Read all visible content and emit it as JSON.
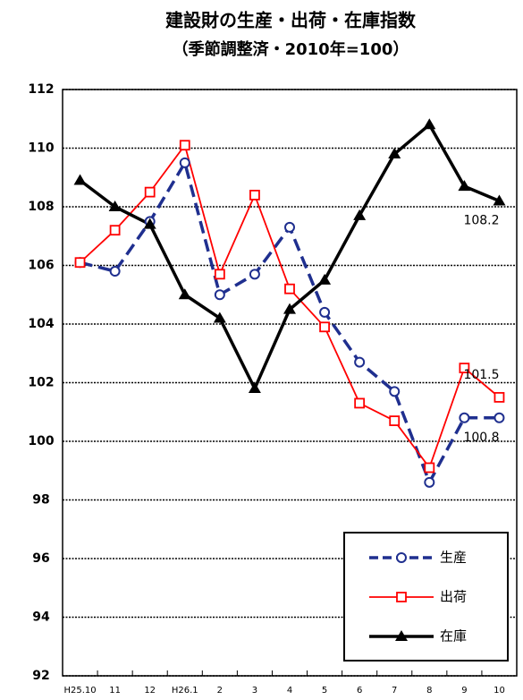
{
  "chart_data": {
    "type": "line",
    "title": "建設財の生産・出荷・在庫指数",
    "subtitle": "（季節調整済・2010年=100）",
    "categories": [
      "H25.10",
      "11",
      "12",
      "H26.1",
      "2",
      "3",
      "4",
      "5",
      "6",
      "7",
      "8",
      "9",
      "10"
    ],
    "series": [
      {
        "name": "生産",
        "color": "#1f2f8f",
        "values": [
          106.1,
          105.8,
          107.5,
          109.5,
          105.0,
          105.7,
          107.3,
          104.4,
          102.7,
          101.7,
          98.6,
          100.8,
          100.8
        ]
      },
      {
        "name": "出荷",
        "color": "#ff0000",
        "values": [
          106.1,
          107.2,
          108.5,
          110.1,
          105.7,
          108.4,
          105.2,
          103.9,
          101.3,
          100.7,
          99.1,
          102.5,
          101.5
        ]
      },
      {
        "name": "在庫",
        "color": "#000000",
        "values": [
          108.9,
          108.0,
          107.4,
          105.0,
          104.2,
          101.8,
          104.5,
          105.5,
          107.7,
          109.8,
          110.8,
          108.7,
          108.2
        ]
      }
    ],
    "ylim": [
      92,
      112
    ],
    "yticks": [
      92,
      94,
      96,
      98,
      100,
      102,
      104,
      106,
      108,
      110,
      112
    ],
    "grid": true,
    "legend": "lower right"
  }
}
